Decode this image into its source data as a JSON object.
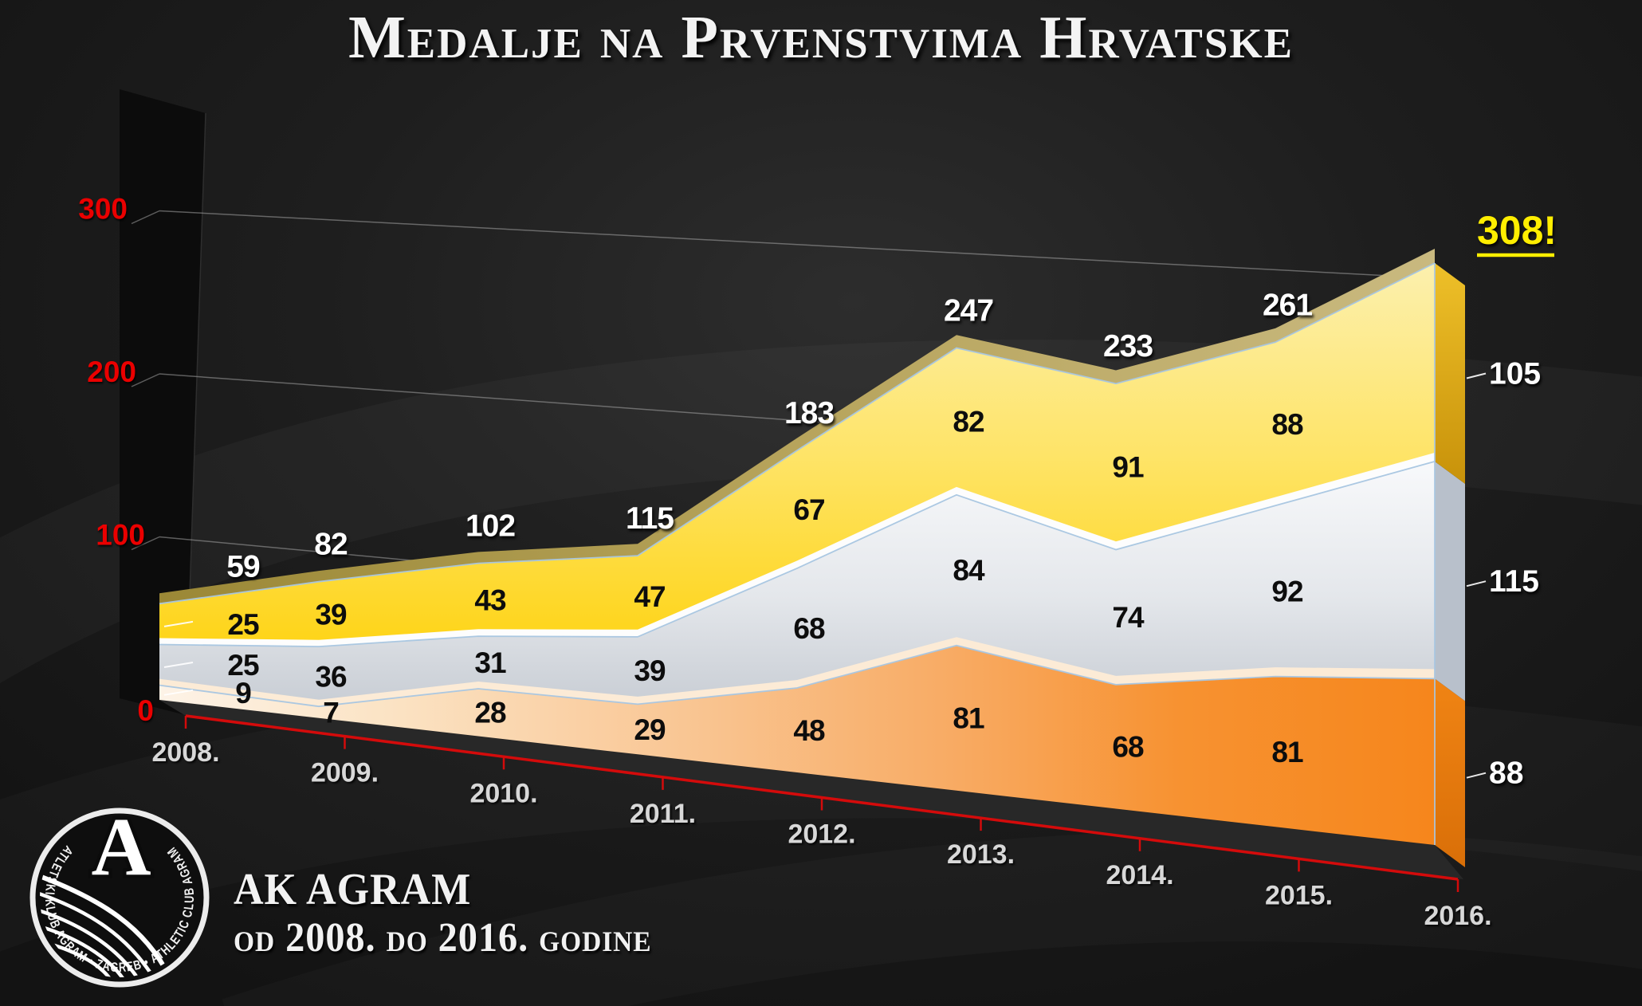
{
  "title": "Medalje na Prvenstvima Hrvatske",
  "footer": {
    "club": "AK AGRAM",
    "range": "od 2008. do 2016. godine"
  },
  "logo": {
    "ring_text": "ATLETSKI KLUB AGRAM • ZAGREB • ATHLETIC CLUB AGRAM",
    "letter": "A"
  },
  "chart_data": {
    "type": "area",
    "stacked": true,
    "title": "Medalje na Prvenstvima Hrvatske",
    "xlabel": "",
    "ylabel": "",
    "categories": [
      "2008.",
      "2009.",
      "2010.",
      "2011.",
      "2012.",
      "2013.",
      "2014.",
      "2015.",
      "2016."
    ],
    "series": [
      {
        "name": "orange",
        "color": "#f6861a",
        "values": [
          9,
          7,
          28,
          29,
          48,
          81,
          68,
          81,
          88
        ]
      },
      {
        "name": "gray",
        "color": "#d4d8dd",
        "values": [
          25,
          36,
          31,
          39,
          68,
          84,
          74,
          92,
          115
        ]
      },
      {
        "name": "yellow",
        "color": "#fed417",
        "values": [
          25,
          39,
          43,
          47,
          67,
          82,
          91,
          88,
          105
        ]
      }
    ],
    "totals": [
      59,
      82,
      102,
      115,
      183,
      247,
      233,
      261,
      308
    ],
    "final_total_label": "308!",
    "y_ticks": [
      0,
      100,
      200,
      300
    ],
    "ylim": [
      0,
      300
    ],
    "grid": true,
    "legend": false,
    "axis_color": "#d40b0b",
    "y_tick_color": "#ea0000",
    "total_label_color": "#ffffff",
    "final_label_color": "#ffee00"
  }
}
